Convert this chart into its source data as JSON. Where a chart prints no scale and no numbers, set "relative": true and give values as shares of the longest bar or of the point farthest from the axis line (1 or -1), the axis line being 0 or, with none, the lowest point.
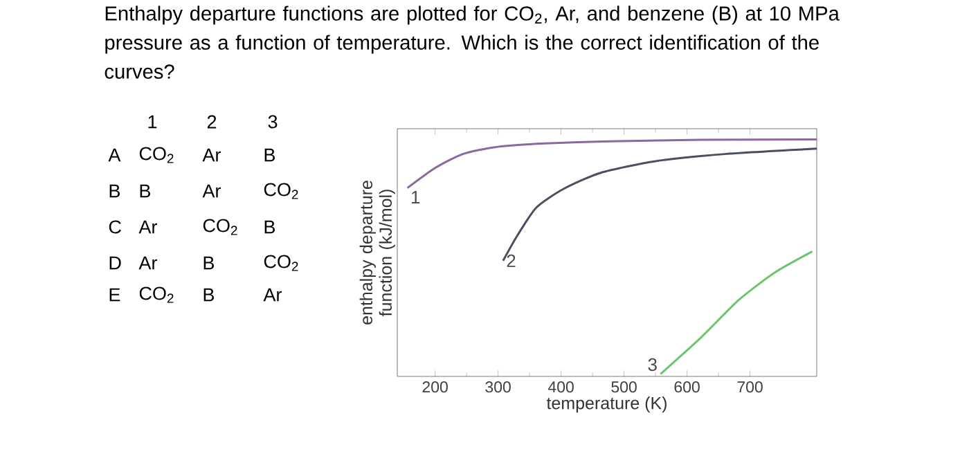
{
  "chart_data": {
    "type": "line",
    "relative": true,
    "title": "Enthalpy departure functions are plotted for CO$_{2}$, Ar, and benzene (B) at 10 MPa pressure as a function of temperature. Which is the correct identification of the curves?",
    "xlabel": "temperature (K)",
    "ylabel": "enthalpy departure function (kJ/mol)",
    "xlim": [
      140,
      806
    ],
    "xticks": [
      200,
      300,
      400,
      500,
      600,
      700
    ],
    "series": [
      {
        "name": "1",
        "color": "#8a6a9e",
        "x": [
          156,
          200,
          244,
          295,
          368,
          477,
          623,
          806
        ],
        "values": [
          0.795,
          0.879,
          0.938,
          0.967,
          0.982,
          0.992,
          0.998,
          1.0
        ]
      },
      {
        "name": "2",
        "color": "#4a5060",
        "x": [
          308,
          331,
          361,
          404,
          463,
          550,
          660,
          806
        ],
        "values": [
          0.488,
          0.596,
          0.713,
          0.791,
          0.859,
          0.908,
          0.938,
          0.961
        ]
      },
      {
        "name": "3",
        "color": "#6cc46c",
        "x": [
          558,
          623,
          682,
          740,
          799
        ],
        "values": [
          0.01,
          0.166,
          0.322,
          0.439,
          0.527
        ]
      }
    ],
    "annotations": [
      "1",
      "2",
      "3",
      "A",
      "CO$_{2}$",
      "Ar",
      "B",
      "B",
      "B",
      "Ar",
      "CO$_{2}$",
      "C",
      "Ar",
      "CO$_{2}$",
      "B",
      "D",
      "Ar",
      "B",
      "CO$_{2}$",
      "E",
      "CO$_{2}$",
      "B",
      "Ar"
    ]
  }
}
